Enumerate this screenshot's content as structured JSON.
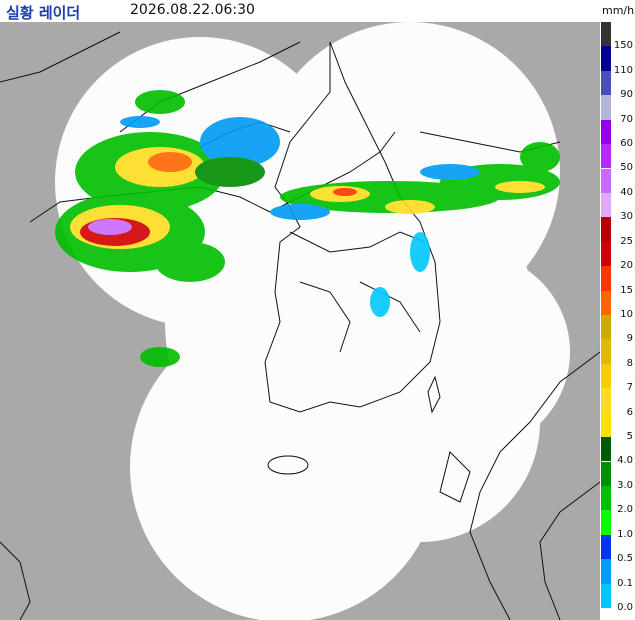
{
  "header": {
    "title": "실황 레이더",
    "timestamp": "2026.08.22.06:30",
    "unit": "mm/h"
  },
  "legend": [
    {
      "label": "150",
      "color": "#333333"
    },
    {
      "label": "110",
      "color": "#000390"
    },
    {
      "label": "90",
      "color": "#4c4eb1"
    },
    {
      "label": "70",
      "color": "#b3b4de"
    },
    {
      "label": "60",
      "color": "#9300e4"
    },
    {
      "label": "50",
      "color": "#b329ff"
    },
    {
      "label": "40",
      "color": "#c969ff"
    },
    {
      "label": "30",
      "color": "#dfa9ff"
    },
    {
      "label": "25",
      "color": "#b40000"
    },
    {
      "label": "20",
      "color": "#d20000"
    },
    {
      "label": "15",
      "color": "#ff3300"
    },
    {
      "label": "10",
      "color": "#ff6600"
    },
    {
      "label": "9",
      "color": "#ccaa00"
    },
    {
      "label": "8",
      "color": "#e0b900"
    },
    {
      "label": "7",
      "color": "#f9cd00"
    },
    {
      "label": "6",
      "color": "#ffdc1f"
    },
    {
      "label": "5",
      "color": "#ffe100"
    },
    {
      "label": "4.0",
      "color": "#005a00"
    },
    {
      "label": "3.0",
      "color": "#008c00"
    },
    {
      "label": "2.0",
      "color": "#00be00"
    },
    {
      "label": "1.0",
      "color": "#00ff00"
    },
    {
      "label": "0.5",
      "color": "#0033f5"
    },
    {
      "label": "0.1",
      "color": "#009bf5"
    },
    {
      "label": "0.0",
      "color": "#00c8ff"
    }
  ]
}
